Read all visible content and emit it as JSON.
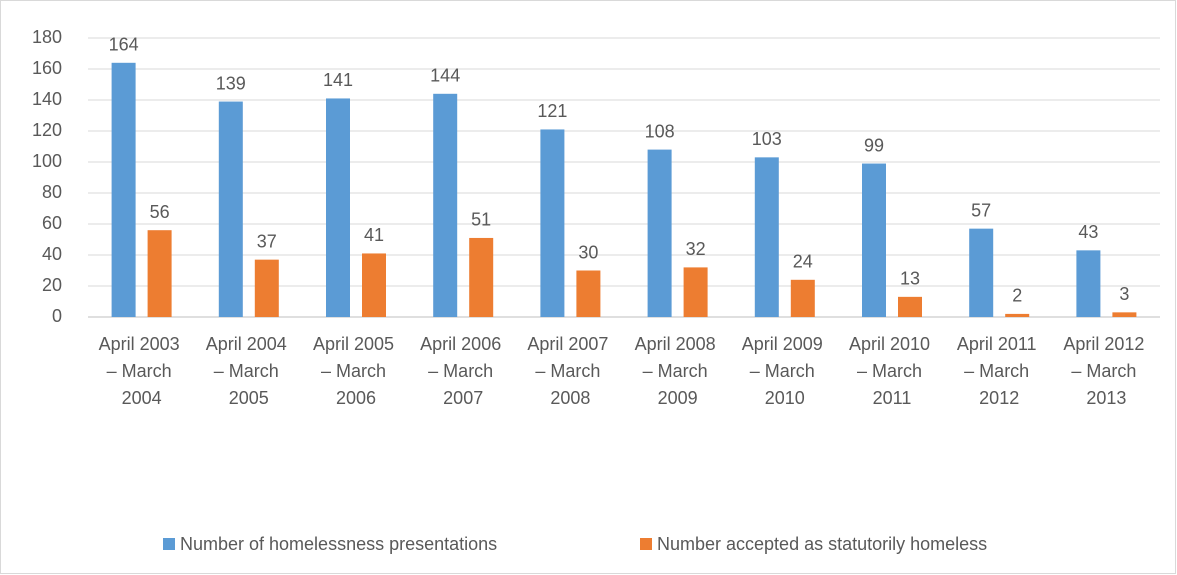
{
  "chart_data": {
    "type": "bar",
    "categories": [
      "April 2003 – March 2004",
      "April 2004 – March 2005",
      "April 2005 – March 2006",
      "April 2006 – March 2007",
      "April 2007 – March 2008",
      "April 2008 – March 2009",
      "April 2009 – March 2010",
      "April 2010 – March 2011",
      "April 2011 – March 2012",
      "April 2012 – March 2013"
    ],
    "series": [
      {
        "name": "Number of homelessness presentations",
        "color": "#5b9bd5",
        "values": [
          164,
          139,
          141,
          144,
          121,
          108,
          103,
          99,
          57,
          43
        ]
      },
      {
        "name": "Number accepted as statutorily homeless",
        "color": "#ed7d31",
        "values": [
          56,
          37,
          41,
          51,
          30,
          32,
          24,
          13,
          2,
          3
        ]
      }
    ],
    "ylim": [
      0,
      180
    ],
    "yticks": [
      0,
      20,
      40,
      60,
      80,
      100,
      120,
      140,
      160,
      180
    ],
    "grid": true,
    "legend": "bottom"
  }
}
